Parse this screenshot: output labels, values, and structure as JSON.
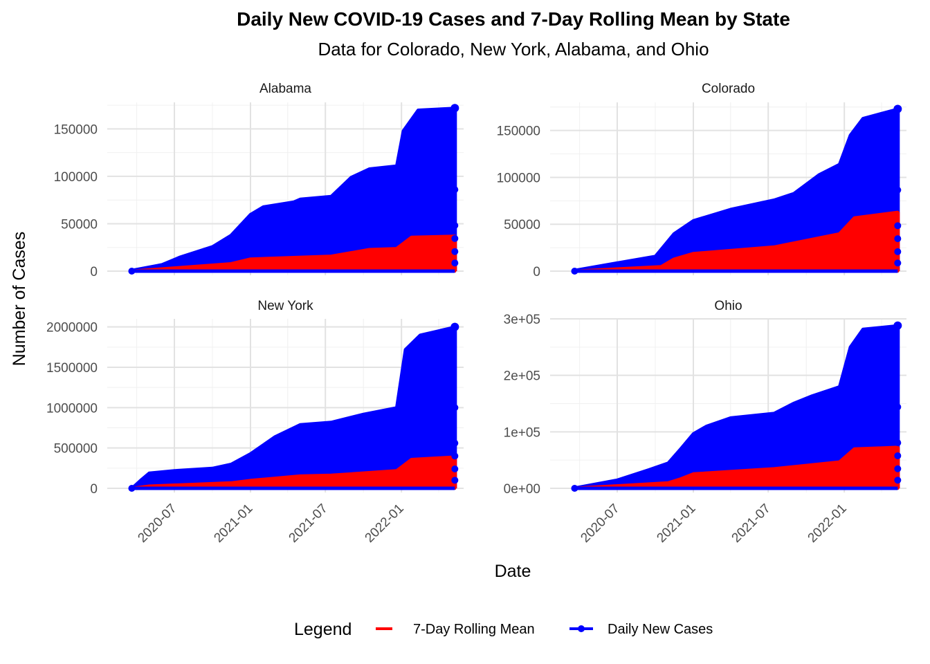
{
  "chart_data": {
    "type": "area",
    "title": "Daily New COVID-19 Cases and 7-Day Rolling Mean by State",
    "subtitle": "Data for Colorado, New York, Alabama, and Ohio",
    "xlabel": "Date",
    "ylabel": "Number of Cases",
    "grid": true,
    "x_ticks": [
      "2020-07",
      "2021-01",
      "2021-07",
      "2022-01"
    ],
    "legend": {
      "title": "Legend",
      "position": "bottom",
      "entries": [
        {
          "label": "7-Day Rolling Mean",
          "color": "#ff0000",
          "marker": "line"
        },
        {
          "label": "Daily New Cases",
          "color": "#0000ff",
          "marker": "line-point"
        }
      ]
    },
    "colors": {
      "daily": "#0000ff",
      "rolling": "#ff0000"
    },
    "panels": [
      {
        "name": "Alabama",
        "ylim": [
          0,
          178000
        ],
        "y_ticks": [
          0,
          50000,
          100000,
          150000
        ],
        "y_tick_labels": [
          "0",
          "50000",
          "100000",
          "150000"
        ],
        "series": [
          {
            "name": "Daily New Cases",
            "x": [
              "2020-03-20",
              "2020-06-01",
              "2020-07-15",
              "2020-10-01",
              "2020-11-15",
              "2021-01-01",
              "2021-02-01",
              "2021-04-15",
              "2021-05-01",
              "2021-07-15",
              "2021-09-01",
              "2021-10-15",
              "2021-12-20",
              "2022-01-05",
              "2022-02-10",
              "2022-05-10"
            ],
            "values": [
              1000,
              7000,
              15000,
              26000,
              38000,
              60000,
              68000,
              73000,
              76000,
              79000,
              99000,
              108000,
              111000,
              148000,
              170000,
              172000
            ]
          },
          {
            "name": "7-Day Rolling Mean",
            "x": [
              "2020-03-20",
              "2020-07-15",
              "2020-11-15",
              "2021-01-01",
              "2021-07-15",
              "2021-10-15",
              "2021-12-20",
              "2022-01-25",
              "2022-05-10"
            ],
            "values": [
              200,
              4000,
              8000,
              13000,
              16000,
              23000,
              24000,
              36000,
              37000
            ]
          }
        ]
      },
      {
        "name": "Colorado",
        "ylim": [
          0,
          180000
        ],
        "y_ticks": [
          0,
          50000,
          100000,
          150000
        ],
        "y_tick_labels": [
          "0",
          "50000",
          "100000",
          "150000"
        ],
        "series": [
          {
            "name": "Daily New Cases",
            "x": [
              "2020-03-20",
              "2020-07-01",
              "2020-10-01",
              "2020-11-15",
              "2021-01-01",
              "2021-04-01",
              "2021-07-15",
              "2021-09-01",
              "2021-11-01",
              "2021-12-20",
              "2022-01-15",
              "2022-02-15",
              "2022-05-10"
            ],
            "values": [
              1000,
              9000,
              16000,
              40000,
              54000,
              66000,
              76000,
              83000,
              103000,
              114000,
              145000,
              163000,
              173000
            ]
          },
          {
            "name": "7-Day Rolling Mean",
            "x": [
              "2020-03-20",
              "2020-10-15",
              "2020-11-15",
              "2021-01-01",
              "2021-07-15",
              "2021-12-20",
              "2022-01-25",
              "2022-05-10"
            ],
            "values": [
              200,
              5000,
              13000,
              19000,
              26000,
              40000,
              57000,
              63000
            ]
          }
        ]
      },
      {
        "name": "New York",
        "ylim": [
          0,
          2100000
        ],
        "y_ticks": [
          0,
          500000,
          1000000,
          1500000,
          2000000
        ],
        "y_tick_labels": [
          "0",
          "500000",
          "1000000",
          "1500000",
          "2000000"
        ],
        "series": [
          {
            "name": "Daily New Cases",
            "x": [
              "2020-03-20",
              "2020-04-10",
              "2020-05-01",
              "2020-07-01",
              "2020-10-01",
              "2020-11-15",
              "2021-01-01",
              "2021-03-01",
              "2021-05-01",
              "2021-07-15",
              "2021-10-01",
              "2021-12-20",
              "2022-01-10",
              "2022-02-15",
              "2022-05-10"
            ],
            "values": [
              1000,
              100000,
              190000,
              220000,
              250000,
              300000,
              430000,
              640000,
              790000,
              820000,
              920000,
              1000000,
              1720000,
              1900000,
              2000000
            ]
          },
          {
            "name": "7-Day Rolling Mean",
            "x": [
              "2020-03-20",
              "2020-05-01",
              "2020-11-15",
              "2021-01-01",
              "2021-05-01",
              "2021-07-15",
              "2021-12-20",
              "2022-01-25",
              "2022-05-10"
            ],
            "values": [
              1000,
              30000,
              70000,
              100000,
              155000,
              165000,
              220000,
              360000,
              390000
            ]
          }
        ]
      },
      {
        "name": "Ohio",
        "ylim": [
          0,
          300000
        ],
        "y_ticks": [
          0,
          100000,
          200000,
          300000
        ],
        "y_tick_labels": [
          "0e+00",
          "1e+05",
          "2e+05",
          "3e+05"
        ],
        "series": [
          {
            "name": "Daily New Cases",
            "x": [
              "2020-03-20",
              "2020-07-01",
              "2020-09-15",
              "2020-11-01",
              "2020-12-01",
              "2021-01-01",
              "2021-02-01",
              "2021-04-01",
              "2021-07-15",
              "2021-09-01",
              "2021-10-15",
              "2021-12-20",
              "2022-01-15",
              "2022-02-15",
              "2022-05-10"
            ],
            "values": [
              1000,
              15000,
              33000,
              45000,
              70000,
              97000,
              110000,
              125000,
              133000,
              151000,
              164000,
              180000,
              250000,
              282000,
              288000
            ]
          },
          {
            "name": "7-Day Rolling Mean",
            "x": [
              "2020-03-20",
              "2020-11-01",
              "2020-12-01",
              "2021-01-01",
              "2021-07-15",
              "2021-12-20",
              "2022-01-25",
              "2022-05-10"
            ],
            "values": [
              500,
              10000,
              17000,
              26000,
              35000,
              47000,
              70000,
              73000
            ]
          }
        ]
      }
    ]
  }
}
